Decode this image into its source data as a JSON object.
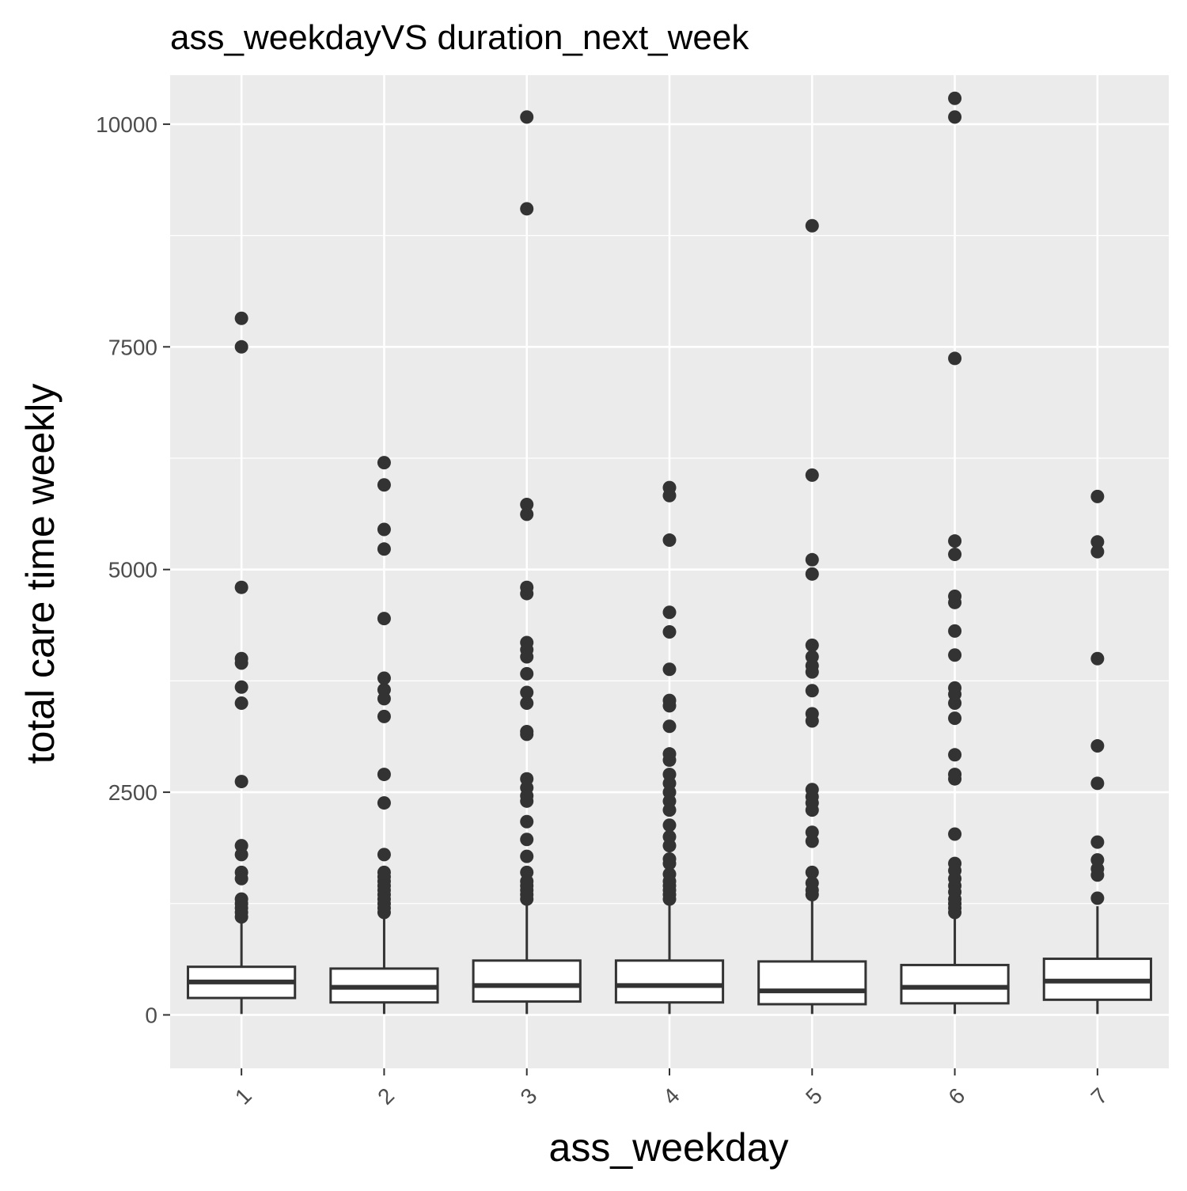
{
  "chart_data": {
    "type": "boxplot",
    "title": "ass_weekdayVS duration_next_week",
    "xlabel": "ass_weekday",
    "ylabel": "total care time weekly",
    "categories": [
      "1",
      "2",
      "3",
      "4",
      "5",
      "6",
      "7"
    ],
    "ylim": [
      -600,
      10550
    ],
    "yticks": [
      0,
      2500,
      5000,
      7500,
      10000
    ],
    "ytick_labels": [
      "0",
      "2500",
      "5000",
      "7500",
      "10000"
    ],
    "grid": true,
    "legend": "none",
    "colors": {
      "panel_background": "#EBEBEB",
      "grid": "#FFFFFF",
      "box_fill": "#FFFFFF",
      "box_stroke": "#333333",
      "outlier": "#333333",
      "tick_text": "#4D4D4D",
      "title_text": "#000000"
    },
    "boxes": [
      {
        "category": "1",
        "lower_whisker": 10,
        "q1": 190,
        "median": 370,
        "q3": 540,
        "upper_whisker": 1050,
        "outliers": [
          7820,
          7500,
          4800,
          4000,
          3950,
          3680,
          3500,
          2620,
          1900,
          1800,
          1600,
          1530,
          1300,
          1250,
          1200,
          1150,
          1100
        ]
      },
      {
        "category": "2",
        "lower_whisker": 10,
        "q1": 140,
        "median": 310,
        "q3": 520,
        "upper_whisker": 1100,
        "outliers": [
          6200,
          5950,
          5450,
          5230,
          4450,
          3780,
          3650,
          3550,
          3350,
          2700,
          2380,
          1800,
          1600,
          1550,
          1500,
          1450,
          1400,
          1350,
          1300,
          1250,
          1200,
          1150
        ]
      },
      {
        "category": "3",
        "lower_whisker": 10,
        "q1": 150,
        "median": 330,
        "q3": 610,
        "upper_whisker": 1240,
        "outliers": [
          10080,
          9050,
          5730,
          5620,
          4800,
          4730,
          4180,
          4100,
          4020,
          3830,
          3620,
          3500,
          3180,
          3150,
          2650,
          2550,
          2460,
          2400,
          2170,
          1970,
          1780,
          1600,
          1500,
          1450,
          1400,
          1350,
          1300
        ]
      },
      {
        "category": "4",
        "lower_whisker": 10,
        "q1": 140,
        "median": 330,
        "q3": 610,
        "upper_whisker": 1290,
        "outliers": [
          5920,
          5830,
          5330,
          4520,
          4300,
          3880,
          3530,
          3470,
          3240,
          2930,
          2860,
          2700,
          2600,
          2500,
          2400,
          2300,
          2130,
          2000,
          1900,
          1750,
          1700,
          1580,
          1500,
          1450,
          1400,
          1350,
          1300
        ]
      },
      {
        "category": "5",
        "lower_whisker": 10,
        "q1": 120,
        "median": 270,
        "q3": 600,
        "upper_whisker": 1300,
        "outliers": [
          8860,
          6060,
          5110,
          4950,
          4150,
          4020,
          3920,
          3850,
          3640,
          3380,
          3300,
          2530,
          2450,
          2380,
          2300,
          2050,
          1950,
          1600,
          1480,
          1400,
          1350
        ]
      },
      {
        "category": "6",
        "lower_whisker": 10,
        "q1": 130,
        "median": 310,
        "q3": 560,
        "upper_whisker": 1120,
        "outliers": [
          10290,
          10080,
          7370,
          5320,
          5170,
          4700,
          4630,
          4310,
          4040,
          3670,
          3600,
          3500,
          3330,
          2920,
          2700,
          2650,
          2030,
          1700,
          1620,
          1530,
          1450,
          1380,
          1300,
          1250,
          1200,
          1150
        ]
      },
      {
        "category": "7",
        "lower_whisker": 10,
        "q1": 170,
        "median": 380,
        "q3": 630,
        "upper_whisker": 1220,
        "outliers": [
          5820,
          5310,
          5200,
          4000,
          3020,
          2600,
          1940,
          1740,
          1640,
          1570,
          1310
        ]
      }
    ]
  }
}
